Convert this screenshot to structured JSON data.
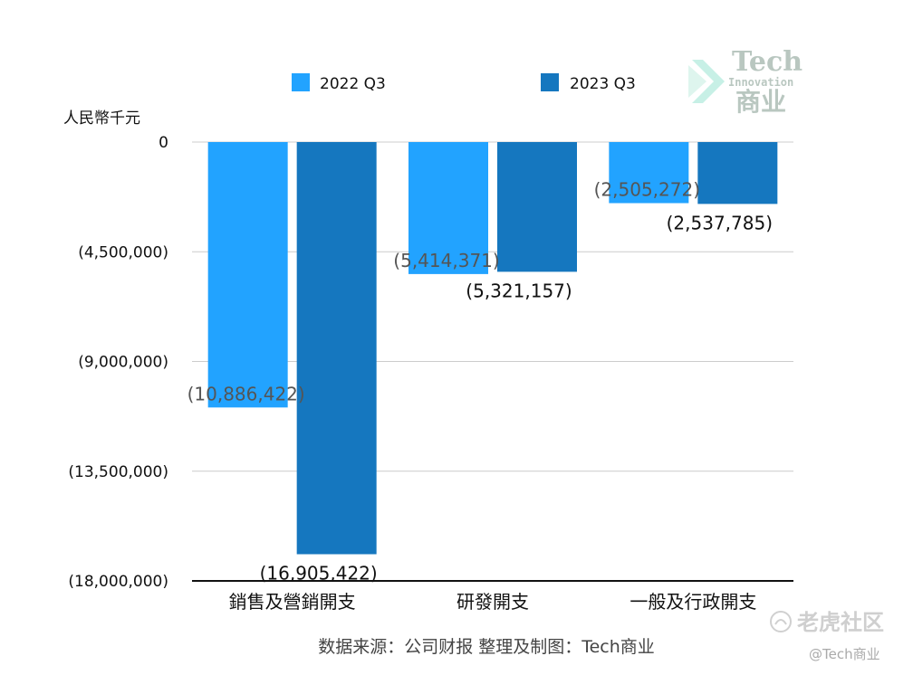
{
  "chart_data": {
    "type": "bar",
    "categories": [
      "銷售及營銷開支",
      "研發開支",
      "一般及行政開支"
    ],
    "series": [
      {
        "name": "2022 Q3",
        "values": [
          -10886422,
          -5414371,
          -2505272
        ],
        "labels": [
          "(10,886,422)",
          "(5,414,371)",
          "(2,505,272)"
        ],
        "color": "#22a3ff"
      },
      {
        "name": "2023 Q3",
        "values": [
          -16905422,
          -5321157,
          -2537785
        ],
        "labels": [
          "(16,905,422)",
          "(5,321,157)",
          "(2,537,785)"
        ],
        "color": "#1577bf"
      }
    ],
    "ylabel": "人民幣千元",
    "ylim": [
      -18000000,
      0
    ],
    "yticks": [
      0,
      -4500000,
      -9000000,
      -13500000,
      -18000000
    ],
    "ytick_labels": [
      "0",
      "(4,500,000)",
      "(9,000,000)",
      "(13,500,000)",
      "(18,000,000)"
    ],
    "grid": true,
    "legend": "top-center"
  },
  "source_note": "数据来源：公司财报 整理及制图：Tech商业",
  "watermark": {
    "line1": "Tech",
    "line2": "Innovation",
    "line3": "商业"
  },
  "corner": {
    "logo_text": "老虎社区",
    "handle": "@Tech商业"
  }
}
